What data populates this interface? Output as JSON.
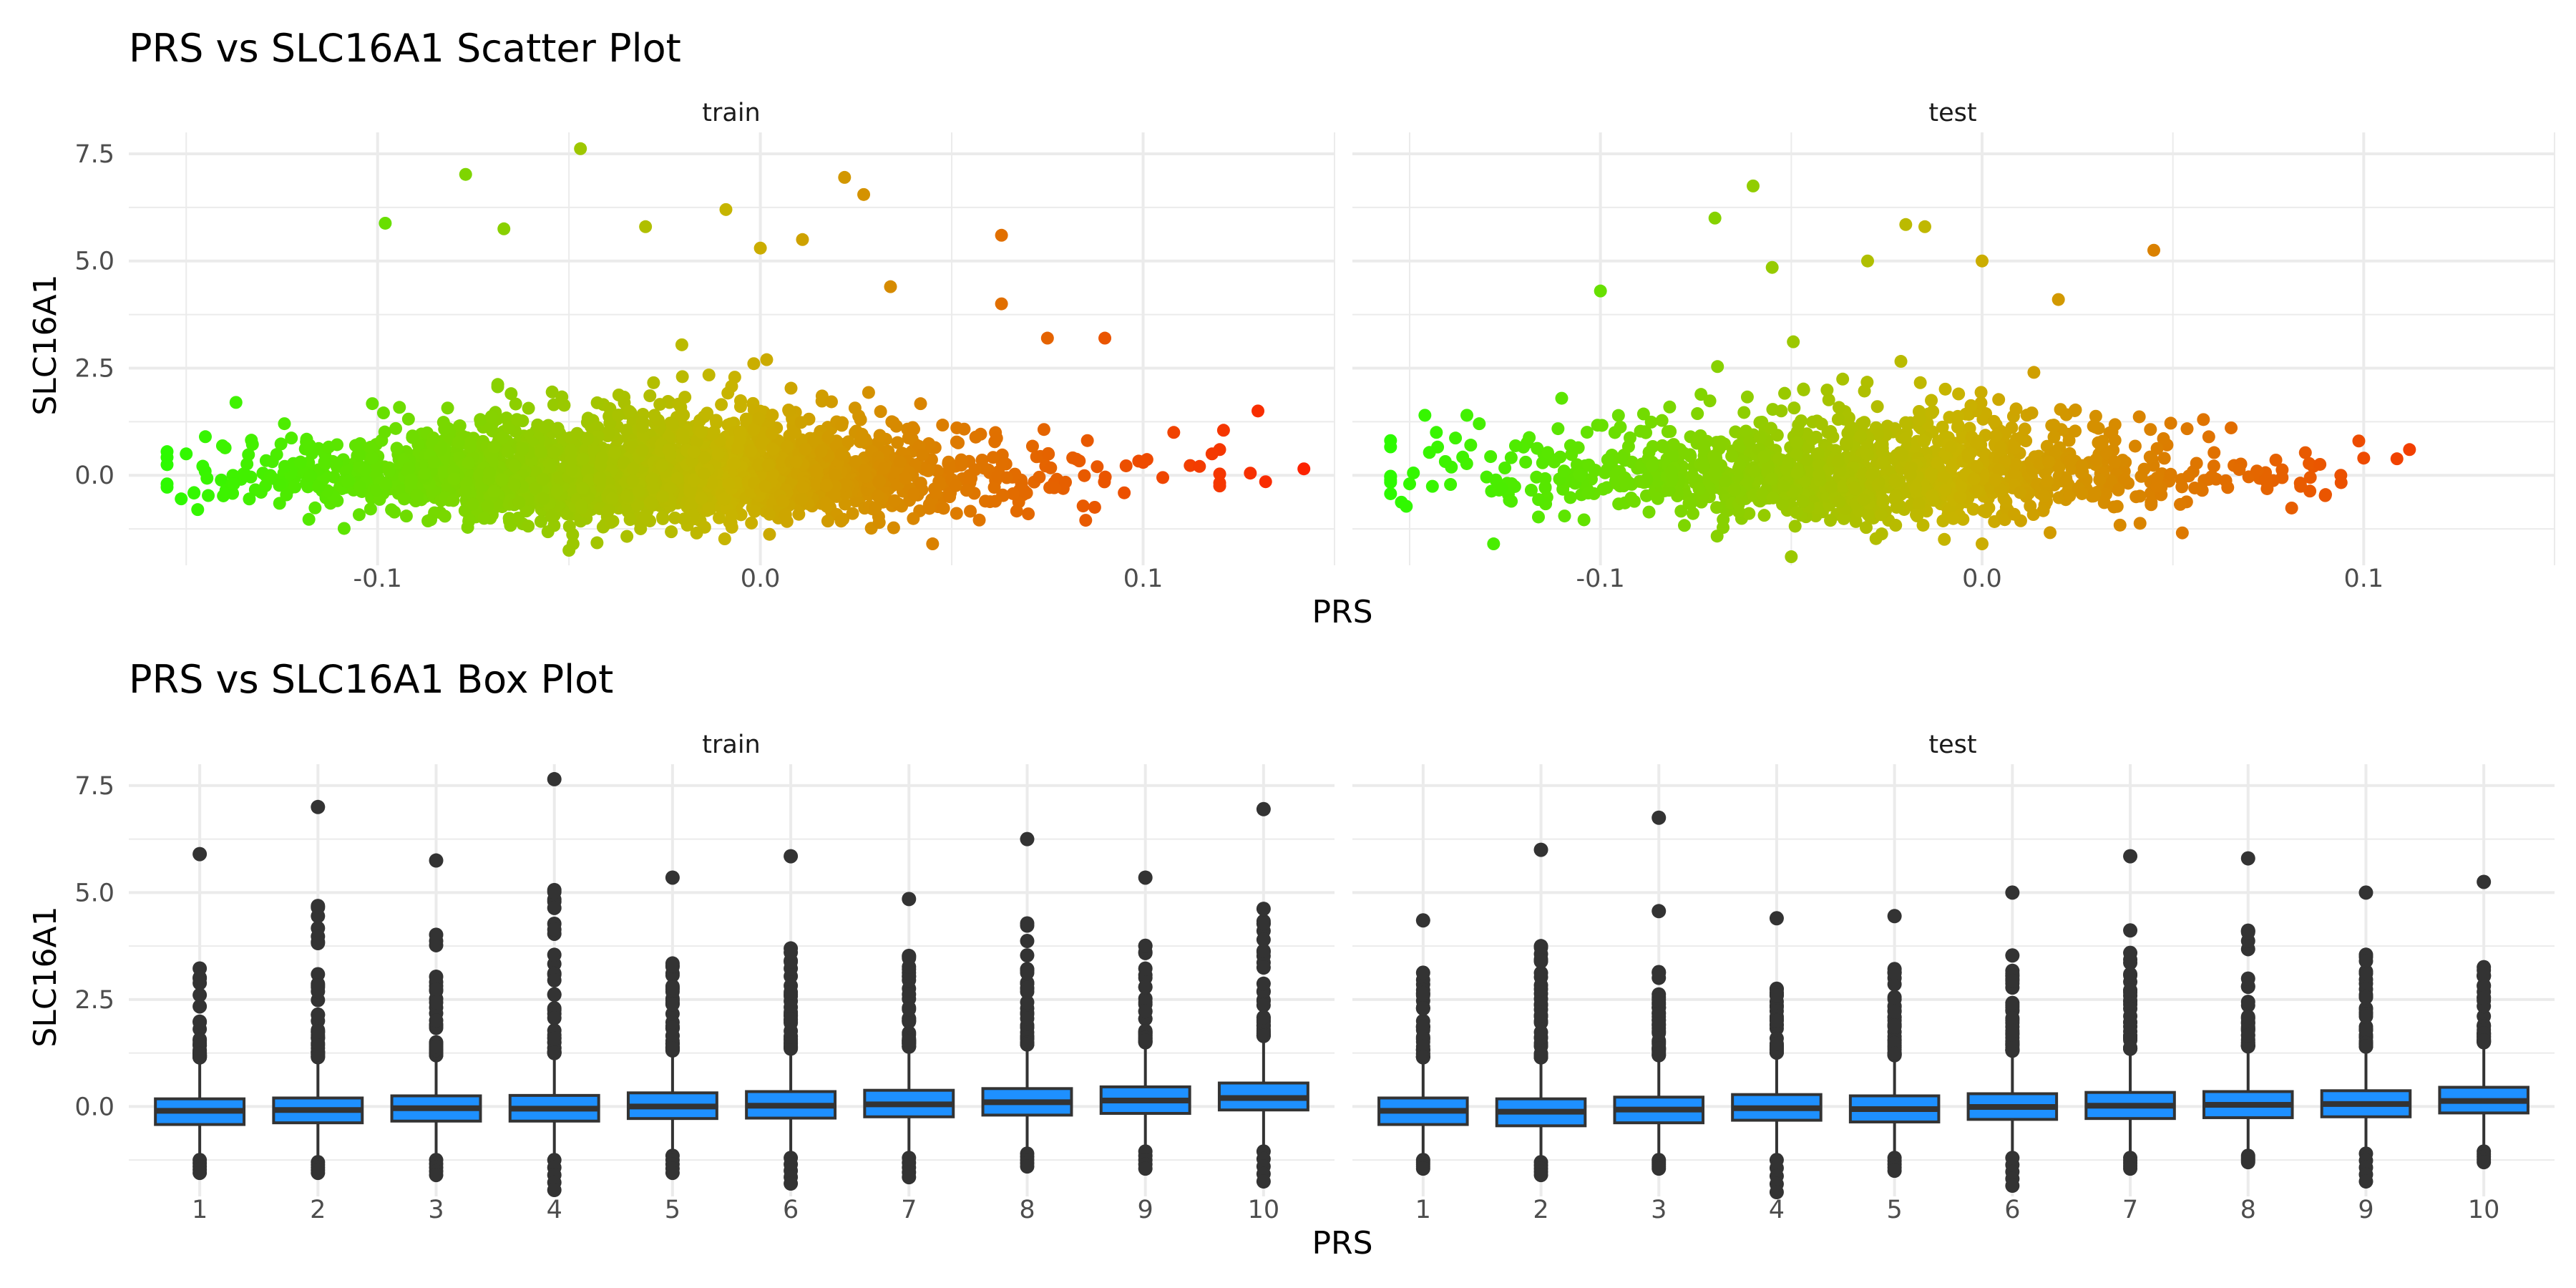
{
  "chart_data": [
    {
      "type": "scatter",
      "title": "PRS vs SLC16A1 Scatter Plot",
      "xlabel": "PRS",
      "ylabel": "SLC16A1",
      "xlim": [
        -0.165,
        0.15
      ],
      "ylim": [
        -2.1,
        8.0
      ],
      "x_ticks": [
        -0.1,
        0.0,
        0.1
      ],
      "x_tick_labels": [
        "-0.1",
        "0.0",
        "0.1"
      ],
      "y_ticks": [
        0.0,
        2.5,
        5.0,
        7.5
      ],
      "y_tick_labels": [
        "0.0",
        "2.5",
        "5.0",
        "7.5"
      ],
      "grid": true,
      "color_scale": {
        "low": "#22ff00",
        "mid": "#c8b400",
        "high": "#ff1a00"
      },
      "facets": [
        {
          "name": "train",
          "cloud": {
            "n": 2600,
            "x_mean": -0.03,
            "x_sd": 0.045,
            "y_sd": 0.55,
            "y_skew": 0.9,
            "seed": 11
          },
          "outliers": [
            {
              "x": -0.047,
              "y": 7.62
            },
            {
              "x": -0.077,
              "y": 7.02
            },
            {
              "x": -0.098,
              "y": 5.88
            },
            {
              "x": -0.067,
              "y": 5.75
            },
            {
              "x": -0.03,
              "y": 5.8
            },
            {
              "x": -0.009,
              "y": 6.2
            },
            {
              "x": 0.0,
              "y": 5.3
            },
            {
              "x": 0.011,
              "y": 5.5
            },
            {
              "x": 0.022,
              "y": 6.95
            },
            {
              "x": 0.027,
              "y": 6.55
            },
            {
              "x": 0.063,
              "y": 5.6
            },
            {
              "x": 0.063,
              "y": 4.0
            },
            {
              "x": 0.09,
              "y": 3.2
            },
            {
              "x": 0.075,
              "y": 3.2
            },
            {
              "x": 0.034,
              "y": 4.4
            },
            {
              "x": 0.13,
              "y": 1.5
            },
            {
              "x": 0.142,
              "y": 0.15
            },
            {
              "x": 0.121,
              "y": 1.05
            },
            {
              "x": 0.128,
              "y": 0.05
            },
            {
              "x": 0.132,
              "y": -0.15
            },
            {
              "x": 0.108,
              "y": 1.0
            },
            {
              "x": 0.118,
              "y": 0.5
            },
            {
              "x": 0.1,
              "y": 0.3
            },
            {
              "x": 0.088,
              "y": 0.2
            },
            {
              "x": -0.155,
              "y": -0.2
            },
            {
              "x": -0.15,
              "y": 0.5
            },
            {
              "x": -0.147,
              "y": -0.8
            },
            {
              "x": -0.137,
              "y": 1.7
            },
            {
              "x": -0.145,
              "y": 0.9
            },
            {
              "x": 0.045,
              "y": -1.6
            },
            {
              "x": -0.05,
              "y": -1.75
            },
            {
              "x": 0.085,
              "y": -1.05
            },
            {
              "x": 0.07,
              "y": -0.9
            }
          ]
        },
        {
          "name": "test",
          "cloud": {
            "n": 1300,
            "x_mean": -0.03,
            "x_sd": 0.045,
            "y_sd": 0.55,
            "y_skew": 0.9,
            "seed": 23
          },
          "outliers": [
            {
              "x": -0.06,
              "y": 6.75
            },
            {
              "x": -0.07,
              "y": 6.0
            },
            {
              "x": -0.02,
              "y": 5.85
            },
            {
              "x": -0.015,
              "y": 5.8
            },
            {
              "x": -0.03,
              "y": 5.0
            },
            {
              "x": 0.0,
              "y": 5.0
            },
            {
              "x": 0.045,
              "y": 5.25
            },
            {
              "x": -0.055,
              "y": 4.85
            },
            {
              "x": 0.02,
              "y": 4.1
            },
            {
              "x": -0.1,
              "y": 4.3
            },
            {
              "x": 0.112,
              "y": 0.6
            },
            {
              "x": 0.1,
              "y": 0.4
            },
            {
              "x": 0.094,
              "y": 0.0
            },
            {
              "x": 0.086,
              "y": -0.05
            },
            {
              "x": 0.072,
              "y": 0.1
            },
            {
              "x": 0.058,
              "y": 1.3
            },
            {
              "x": -0.15,
              "y": -0.2
            },
            {
              "x": -0.143,
              "y": 1.0
            },
            {
              "x": -0.146,
              "y": 1.4
            },
            {
              "x": -0.128,
              "y": -1.6
            },
            {
              "x": -0.135,
              "y": 1.4
            },
            {
              "x": -0.05,
              "y": -1.9
            },
            {
              "x": 0.0,
              "y": -1.6
            },
            {
              "x": 0.09,
              "y": -0.45
            }
          ]
        }
      ]
    },
    {
      "type": "box",
      "title": "PRS vs SLC16A1 Box Plot",
      "xlabel": "PRS",
      "ylabel": "SLC16A1",
      "ylim": [
        -2.1,
        8.0
      ],
      "y_ticks": [
        0.0,
        2.5,
        5.0,
        7.5
      ],
      "y_tick_labels": [
        "0.0",
        "2.5",
        "5.0",
        "7.5"
      ],
      "categories": [
        "1",
        "2",
        "3",
        "4",
        "5",
        "6",
        "7",
        "8",
        "9",
        "10"
      ],
      "fill_color": "#1e90ff",
      "outline_color": "#333333",
      "grid": true,
      "facets": [
        {
          "name": "train",
          "boxes": [
            {
              "q1": -0.42,
              "median": -0.1,
              "q3": 0.18,
              "whisker_low": -1.15,
              "whisker_high": 1.05,
              "outlier_max": 5.9,
              "outlier_min": -1.55
            },
            {
              "q1": -0.38,
              "median": -0.08,
              "q3": 0.2,
              "whisker_low": -1.2,
              "whisker_high": 1.05,
              "outlier_max": 7.0,
              "outlier_min": -1.55
            },
            {
              "q1": -0.34,
              "median": -0.04,
              "q3": 0.25,
              "whisker_low": -1.15,
              "whisker_high": 1.1,
              "outlier_max": 5.75,
              "outlier_min": -1.6
            },
            {
              "q1": -0.34,
              "median": -0.05,
              "q3": 0.26,
              "whisker_low": -1.15,
              "whisker_high": 1.15,
              "outlier_max": 7.65,
              "outlier_min": -1.95
            },
            {
              "q1": -0.28,
              "median": 0.0,
              "q3": 0.32,
              "whisker_low": -1.05,
              "whisker_high": 1.2,
              "outlier_max": 5.35,
              "outlier_min": -1.55
            },
            {
              "q1": -0.27,
              "median": 0.02,
              "q3": 0.35,
              "whisker_low": -1.1,
              "whisker_high": 1.25,
              "outlier_max": 5.85,
              "outlier_min": -1.8
            },
            {
              "q1": -0.24,
              "median": 0.05,
              "q3": 0.38,
              "whisker_low": -1.1,
              "whisker_high": 1.3,
              "outlier_max": 4.85,
              "outlier_min": -1.65
            },
            {
              "q1": -0.2,
              "median": 0.1,
              "q3": 0.42,
              "whisker_low": -1.0,
              "whisker_high": 1.35,
              "outlier_max": 6.25,
              "outlier_min": -1.4
            },
            {
              "q1": -0.16,
              "median": 0.14,
              "q3": 0.46,
              "whisker_low": -0.95,
              "whisker_high": 1.4,
              "outlier_max": 5.35,
              "outlier_min": -1.45
            },
            {
              "q1": -0.08,
              "median": 0.2,
              "q3": 0.55,
              "whisker_low": -0.95,
              "whisker_high": 1.55,
              "outlier_max": 6.95,
              "outlier_min": -1.75
            }
          ]
        },
        {
          "name": "test",
          "boxes": [
            {
              "q1": -0.42,
              "median": -0.1,
              "q3": 0.2,
              "whisker_low": -1.15,
              "whisker_high": 1.05,
              "outlier_max": 4.35,
              "outlier_min": -1.45
            },
            {
              "q1": -0.45,
              "median": -0.12,
              "q3": 0.18,
              "whisker_low": -1.2,
              "whisker_high": 1.05,
              "outlier_max": 6.0,
              "outlier_min": -1.6
            },
            {
              "q1": -0.38,
              "median": -0.07,
              "q3": 0.22,
              "whisker_low": -1.15,
              "whisker_high": 1.1,
              "outlier_max": 6.75,
              "outlier_min": -1.45
            },
            {
              "q1": -0.32,
              "median": -0.04,
              "q3": 0.28,
              "whisker_low": -1.15,
              "whisker_high": 1.15,
              "outlier_max": 4.4,
              "outlier_min": -2.0
            },
            {
              "q1": -0.36,
              "median": -0.06,
              "q3": 0.25,
              "whisker_low": -1.1,
              "whisker_high": 1.1,
              "outlier_max": 4.45,
              "outlier_min": -1.5
            },
            {
              "q1": -0.3,
              "median": -0.01,
              "q3": 0.3,
              "whisker_low": -1.1,
              "whisker_high": 1.2,
              "outlier_max": 5.0,
              "outlier_min": -1.85
            },
            {
              "q1": -0.28,
              "median": 0.02,
              "q3": 0.33,
              "whisker_low": -1.1,
              "whisker_high": 1.25,
              "outlier_max": 5.85,
              "outlier_min": -1.45
            },
            {
              "q1": -0.26,
              "median": 0.04,
              "q3": 0.35,
              "whisker_low": -1.05,
              "whisker_high": 1.3,
              "outlier_max": 5.8,
              "outlier_min": -1.3
            },
            {
              "q1": -0.24,
              "median": 0.06,
              "q3": 0.37,
              "whisker_low": -1.0,
              "whisker_high": 1.3,
              "outlier_max": 5.0,
              "outlier_min": -1.75
            },
            {
              "q1": -0.15,
              "median": 0.13,
              "q3": 0.45,
              "whisker_low": -0.95,
              "whisker_high": 1.4,
              "outlier_max": 5.25,
              "outlier_min": -1.3
            }
          ]
        }
      ]
    }
  ]
}
